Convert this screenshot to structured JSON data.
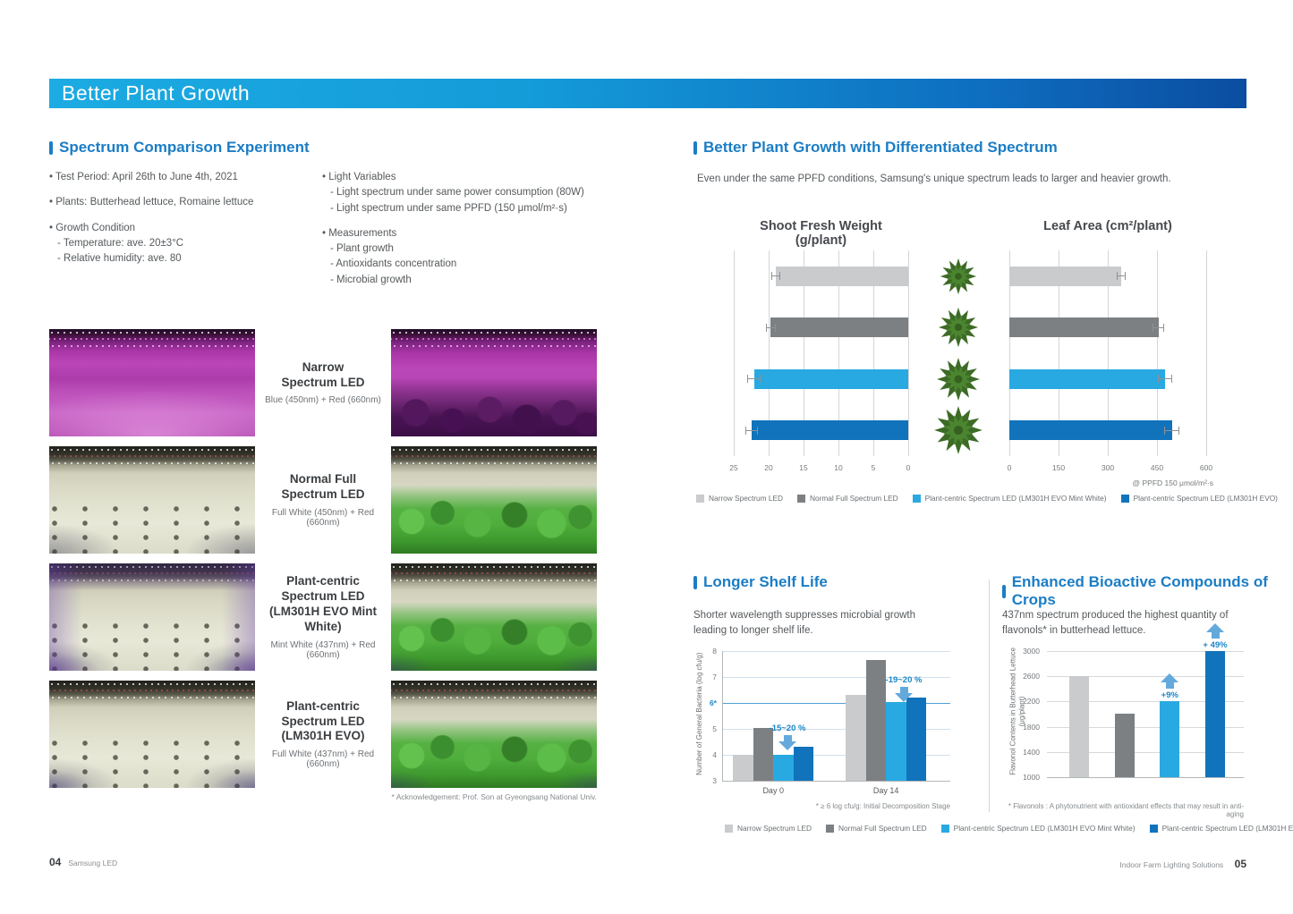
{
  "page": {
    "banner_title": "Better Plant Growth",
    "footer_left": {
      "page_no": "04",
      "label": "Samsung LED"
    },
    "footer_right": {
      "label": "Indoor Farm Lighting Solutions",
      "page_no": "05"
    }
  },
  "marks": {
    "bullet": "•",
    "dash": "-"
  },
  "left": {
    "section_title": "Spectrum Comparison Experiment",
    "bullets_col1": [
      {
        "text": "Test Period: April 26th to June 4th, 2021",
        "subs": []
      },
      {
        "text": "Plants: Butterhead lettuce, Romaine lettuce",
        "subs": []
      },
      {
        "text": "Growth Condition",
        "subs": [
          "Temperature: ave. 20±3°C",
          "Relative humidity: ave. 80"
        ]
      }
    ],
    "bullets_col2": [
      {
        "text": "Light Variables",
        "subs": [
          "Light spectrum under same power consumption (80W)",
          "Light spectrum under same PPFD (150 μmol/m²·s)"
        ]
      },
      {
        "text": "Measurements",
        "subs": [
          "Plant growth",
          "Antioxidants concentration",
          "Microbial growth"
        ]
      }
    ],
    "rows": [
      {
        "title": "Narrow\nSpectrum LED",
        "subtitle": "Blue (450nm) + Red (660nm)"
      },
      {
        "title": "Normal Full\nSpectrum LED",
        "subtitle": "Full White (450nm) + Red (660nm)"
      },
      {
        "title": "Plant-centric\nSpectrum LED\n(LM301H EVO Mint White)",
        "subtitle": "Mint White (437nm) + Red (660nm)"
      },
      {
        "title": "Plant-centric\nSpectrum LED\n(LM301H EVO)",
        "subtitle": "Full White (437nm) + Red (660nm)"
      }
    ],
    "acknowledgement": "* Acknowledgement: Prof. Son at Gyeongsang National Univ."
  },
  "right": {
    "growth_title": "Better Plant Growth with Differentiated Spectrum",
    "growth_para": "Even under the same PPFD conditions, Samsung's unique spectrum leads to larger and heavier growth.",
    "shelf_title": "Longer Shelf Life",
    "shelf_para": "Shorter wavelength suppresses microbial growth leading to longer shelf life.",
    "bio_title": "Enhanced Bioactive Compounds of Crops",
    "bio_para": "437nm spectrum produced the highest quantity of flavonols* in butterhead lettuce."
  },
  "legend": [
    {
      "label": "Narrow Spectrum LED",
      "color": "#c9cbcd"
    },
    {
      "label": "Normal Full Spectrum LED",
      "color": "#7d8083"
    },
    {
      "label": "Plant-centric Spectrum LED (LM301H EVO Mint White)",
      "color": "#29a9e1"
    },
    {
      "label": "Plant-centric Spectrum LED (LM301H EVO)",
      "color": "#1173bb"
    }
  ],
  "colors": {
    "banner_start": "#1cabe2",
    "banner_end": "#0b4da1",
    "section_title_blue": "#1b7dc5",
    "annotation_blue": "#1b86c8",
    "arrow_blue": "#64a9dc",
    "ref_line_blue": "#4f9fd4"
  },
  "chart_data": [
    {
      "type": "bar",
      "id": "growth",
      "layout": "horizontal-paired",
      "series_labels": [
        "Narrow Spectrum LED",
        "Normal Full Spectrum LED",
        "Plant-centric Spectrum LED (LM301H EVO Mint White)",
        "Plant-centric Spectrum LED (LM301H EVO)"
      ],
      "panels": [
        {
          "title": "Shoot Fresh Weight (g/plant)",
          "ticks": [
            25,
            20,
            15,
            10,
            5,
            0
          ],
          "max": 25,
          "direction": "right-to-left",
          "values": [
            19,
            19.7,
            22.1,
            22.4
          ],
          "errors": [
            0.6,
            0.7,
            1.0,
            0.9
          ]
        },
        {
          "title": "Leaf Area (cm²/plant)",
          "ticks": [
            0,
            150,
            300,
            450,
            600
          ],
          "max": 600,
          "direction": "left-to-right",
          "values": [
            340,
            455,
            475,
            495
          ],
          "errors": [
            12,
            18,
            22,
            22
          ]
        }
      ],
      "note": "@ PPFD 150 μmol/m²·s"
    },
    {
      "type": "bar",
      "id": "shelf",
      "layout": "grouped-vertical",
      "ylabel": "Number of General Bacteria (log cfu/g)",
      "ylim": [
        3,
        8
      ],
      "yticks": [
        3,
        4,
        5,
        6,
        7,
        8
      ],
      "ref_line": {
        "value": 6,
        "label": "6*"
      },
      "categories": [
        "Day 0",
        "Day 14"
      ],
      "series": [
        {
          "name": "Narrow Spectrum LED",
          "values": [
            4.0,
            6.3
          ]
        },
        {
          "name": "Normal Full Spectrum LED",
          "values": [
            5.05,
            7.65
          ]
        },
        {
          "name": "Plant-centric Spectrum LED (LM301H EVO Mint White)",
          "values": [
            4.0,
            6.05
          ]
        },
        {
          "name": "Plant-centric Spectrum LED (LM301H EVO)",
          "values": [
            4.3,
            6.2
          ]
        }
      ],
      "annotations": [
        {
          "text": "-15~20 %",
          "category": "Day 0"
        },
        {
          "text": "-19~20 %",
          "category": "Day 14"
        }
      ],
      "footnote": "* ≥ 6 log cfu/g: Initial Decomposition Stage"
    },
    {
      "type": "bar",
      "id": "flavonol",
      "layout": "vertical",
      "ylabel": "Flavonol Contents in Butterhead Lettuce\n(μg/plant)",
      "ylim": [
        1000,
        3000
      ],
      "yticks": [
        1000,
        1400,
        1800,
        2200,
        2600,
        3000
      ],
      "categories": [
        "Narrow Spectrum LED",
        "Normal Full Spectrum LED",
        "Plant-centric Spectrum LED (LM301H EVO Mint White)",
        "Plant-centric Spectrum LED (LM301H EVO)"
      ],
      "values": [
        2600,
        2010,
        2200,
        3000
      ],
      "annotations": [
        {
          "bar_index": 2,
          "text": "+9%"
        },
        {
          "bar_index": 3,
          "text": "+ 49%"
        }
      ],
      "footnote": "* Flavonols : A phytonutrient with antioxidant effects that may result in anti-aging"
    }
  ]
}
